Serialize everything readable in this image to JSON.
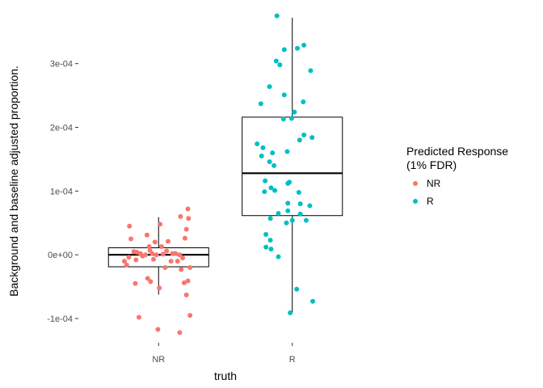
{
  "chart_data": {
    "type": "boxplot",
    "xlabel": "truth",
    "ylabel": "Background and baseline adjusted proportion.",
    "categories": [
      "NR",
      "R"
    ],
    "ylim": [
      -0.000138,
      0.000377
    ],
    "y_ticks": [
      {
        "value": -0.0001,
        "label": "-1e-04"
      },
      {
        "value": 0,
        "label": "0e+00"
      },
      {
        "value": 0.0001,
        "label": "1e-04"
      },
      {
        "value": 0.0002,
        "label": "2e-04"
      },
      {
        "value": 0.0003,
        "label": "3e-04"
      }
    ],
    "grid": false,
    "legend": {
      "title_lines": [
        "Predicted Response",
        "(1% FDR)"
      ],
      "position": "right",
      "entries": [
        {
          "label": "NR",
          "color": "#F8766D"
        },
        {
          "label": "R",
          "color": "#00BFC4"
        }
      ]
    },
    "boxes": [
      {
        "category": "NR",
        "whisker_low": -6.25e-05,
        "q1": -1.88e-05,
        "median": 0.0,
        "q3": 1.1e-05,
        "whisker_high": 5.9e-05
      },
      {
        "category": "R",
        "whisker_low": -9.1e-05,
        "q1": 6.15e-05,
        "median": 0.000128,
        "q3": 0.000216,
        "whisker_high": 0.000372
      }
    ],
    "points": [
      {
        "x": 0.744,
        "y": -1e-05,
        "group": "NR"
      },
      {
        "x": 0.761,
        "y": -1.6e-05,
        "group": "NR"
      },
      {
        "x": 0.777,
        "y": -4e-06,
        "group": "NR"
      },
      {
        "x": 0.782,
        "y": 4.5e-05,
        "group": "NR"
      },
      {
        "x": 0.793,
        "y": 2.5e-05,
        "group": "NR"
      },
      {
        "x": 0.815,
        "y": 5e-06,
        "group": "NR"
      },
      {
        "x": 0.826,
        "y": -4.5e-05,
        "group": "NR"
      },
      {
        "x": 0.831,
        "y": -8e-06,
        "group": "NR"
      },
      {
        "x": 0.853,
        "y": -9.8e-05,
        "group": "NR"
      },
      {
        "x": 0.864,
        "y": 2e-06,
        "group": "NR"
      },
      {
        "x": 0.88,
        "y": -2e-06,
        "group": "NR"
      },
      {
        "x": 0.902,
        "y": 0.0,
        "group": "NR"
      },
      {
        "x": 0.913,
        "y": 3.1e-05,
        "group": "NR"
      },
      {
        "x": 0.918,
        "y": -3.7e-05,
        "group": "NR"
      },
      {
        "x": 0.929,
        "y": 1.3e-05,
        "group": "NR"
      },
      {
        "x": 0.94,
        "y": -4.2e-05,
        "group": "NR"
      },
      {
        "x": 0.951,
        "y": 2e-06,
        "group": "NR"
      },
      {
        "x": 0.962,
        "y": -7e-06,
        "group": "NR"
      },
      {
        "x": 0.973,
        "y": 2e-05,
        "group": "NR"
      },
      {
        "x": 0.984,
        "y": 0.0,
        "group": "NR"
      },
      {
        "x": 0.995,
        "y": -0.000117,
        "group": "NR"
      },
      {
        "x": 1.005,
        "y": -5.2e-05,
        "group": "NR"
      },
      {
        "x": 1.011,
        "y": 4.8e-05,
        "group": "NR"
      },
      {
        "x": 1.022,
        "y": 1.3e-05,
        "group": "NR"
      },
      {
        "x": 1.033,
        "y": 1e-06,
        "group": "NR"
      },
      {
        "x": 1.049,
        "y": -2e-05,
        "group": "NR"
      },
      {
        "x": 1.06,
        "y": 6e-06,
        "group": "NR"
      },
      {
        "x": 1.071,
        "y": 2.1e-05,
        "group": "NR"
      },
      {
        "x": 1.093,
        "y": -1e-05,
        "group": "NR"
      },
      {
        "x": 1.104,
        "y": 2e-06,
        "group": "NR"
      },
      {
        "x": 1.126,
        "y": 2e-06,
        "group": "NR"
      },
      {
        "x": 1.142,
        "y": -1e-05,
        "group": "NR"
      },
      {
        "x": 1.158,
        "y": -0.000122,
        "group": "NR"
      },
      {
        "x": 1.158,
        "y": 0.0,
        "group": "NR"
      },
      {
        "x": 1.164,
        "y": 6e-05,
        "group": "NR"
      },
      {
        "x": 1.18,
        "y": -5e-06,
        "group": "NR"
      },
      {
        "x": 1.191,
        "y": -4.4e-05,
        "group": "NR"
      },
      {
        "x": 1.197,
        "y": 2.6e-05,
        "group": "NR"
      },
      {
        "x": 1.208,
        "y": -6.3e-05,
        "group": "NR"
      },
      {
        "x": 1.208,
        "y": 4e-05,
        "group": "NR"
      },
      {
        "x": 1.219,
        "y": 7.2e-05,
        "group": "NR"
      },
      {
        "x": 1.219,
        "y": -4.1e-05,
        "group": "NR"
      },
      {
        "x": 1.224,
        "y": 5.7e-05,
        "group": "NR"
      },
      {
        "x": 1.235,
        "y": -9.5e-05,
        "group": "NR"
      },
      {
        "x": 1.235,
        "y": -2e-05,
        "group": "NR"
      },
      {
        "x": 1.169,
        "y": -2.3e-05,
        "group": "NR"
      },
      {
        "x": 0.837,
        "y": 4e-06,
        "group": "NR"
      },
      {
        "x": 0.935,
        "y": 7e-06,
        "group": "NR"
      },
      {
        "x": 1.737,
        "y": 0.000174,
        "group": "R"
      },
      {
        "x": 1.765,
        "y": 0.000237,
        "group": "R"
      },
      {
        "x": 1.77,
        "y": 0.000155,
        "group": "R"
      },
      {
        "x": 1.781,
        "y": 0.000168,
        "group": "R"
      },
      {
        "x": 1.792,
        "y": 9.9e-05,
        "group": "R"
      },
      {
        "x": 1.797,
        "y": 0.000116,
        "group": "R"
      },
      {
        "x": 1.803,
        "y": 3.2e-05,
        "group": "R"
      },
      {
        "x": 1.803,
        "y": 1.2e-05,
        "group": "R"
      },
      {
        "x": 1.83,
        "y": 0.000264,
        "group": "R"
      },
      {
        "x": 1.83,
        "y": 0.000146,
        "group": "R"
      },
      {
        "x": 1.836,
        "y": 5.7e-05,
        "group": "R"
      },
      {
        "x": 1.836,
        "y": 2.3e-05,
        "group": "R"
      },
      {
        "x": 1.841,
        "y": 9e-06,
        "group": "R"
      },
      {
        "x": 1.841,
        "y": 0.000105,
        "group": "R"
      },
      {
        "x": 1.852,
        "y": 0.00016,
        "group": "R"
      },
      {
        "x": 1.863,
        "y": 0.00014,
        "group": "R"
      },
      {
        "x": 1.869,
        "y": 0.000101,
        "group": "R"
      },
      {
        "x": 1.88,
        "y": 0.000304,
        "group": "R"
      },
      {
        "x": 1.885,
        "y": 0.000375,
        "group": "R"
      },
      {
        "x": 1.896,
        "y": 6.5e-05,
        "group": "R"
      },
      {
        "x": 1.896,
        "y": -3e-06,
        "group": "R"
      },
      {
        "x": 1.907,
        "y": 0.000298,
        "group": "R"
      },
      {
        "x": 1.934,
        "y": 0.000213,
        "group": "R"
      },
      {
        "x": 1.94,
        "y": 0.000322,
        "group": "R"
      },
      {
        "x": 1.94,
        "y": 0.000251,
        "group": "R"
      },
      {
        "x": 1.967,
        "y": 8.1e-05,
        "group": "R"
      },
      {
        "x": 1.967,
        "y": 6.9e-05,
        "group": "R"
      },
      {
        "x": 1.962,
        "y": 0.000162,
        "group": "R"
      },
      {
        "x": 1.967,
        "y": 0.000112,
        "group": "R"
      },
      {
        "x": 1.978,
        "y": 0.000114,
        "group": "R"
      },
      {
        "x": 1.984,
        "y": -9.1e-05,
        "group": "R"
      },
      {
        "x": 1.995,
        "y": 0.000214,
        "group": "R"
      },
      {
        "x": 2.0,
        "y": 5.4e-05,
        "group": "R"
      },
      {
        "x": 2.016,
        "y": 0.000224,
        "group": "R"
      },
      {
        "x": 2.038,
        "y": 0.000324,
        "group": "R"
      },
      {
        "x": 2.033,
        "y": -5.4e-05,
        "group": "R"
      },
      {
        "x": 2.049,
        "y": 9.8e-05,
        "group": "R"
      },
      {
        "x": 2.055,
        "y": 0.00018,
        "group": "R"
      },
      {
        "x": 2.06,
        "y": 6.4e-05,
        "group": "R"
      },
      {
        "x": 2.082,
        "y": 0.00024,
        "group": "R"
      },
      {
        "x": 2.087,
        "y": 0.000329,
        "group": "R"
      },
      {
        "x": 2.087,
        "y": 0.000188,
        "group": "R"
      },
      {
        "x": 2.104,
        "y": 5.4e-05,
        "group": "R"
      },
      {
        "x": 2.131,
        "y": 7.7e-05,
        "group": "R"
      },
      {
        "x": 2.137,
        "y": 0.000289,
        "group": "R"
      },
      {
        "x": 2.148,
        "y": 0.000184,
        "group": "R"
      },
      {
        "x": 2.153,
        "y": -7.3e-05,
        "group": "R"
      },
      {
        "x": 2.06,
        "y": 8e-05,
        "group": "R"
      },
      {
        "x": 1.956,
        "y": 5e-05,
        "group": "R"
      }
    ]
  }
}
